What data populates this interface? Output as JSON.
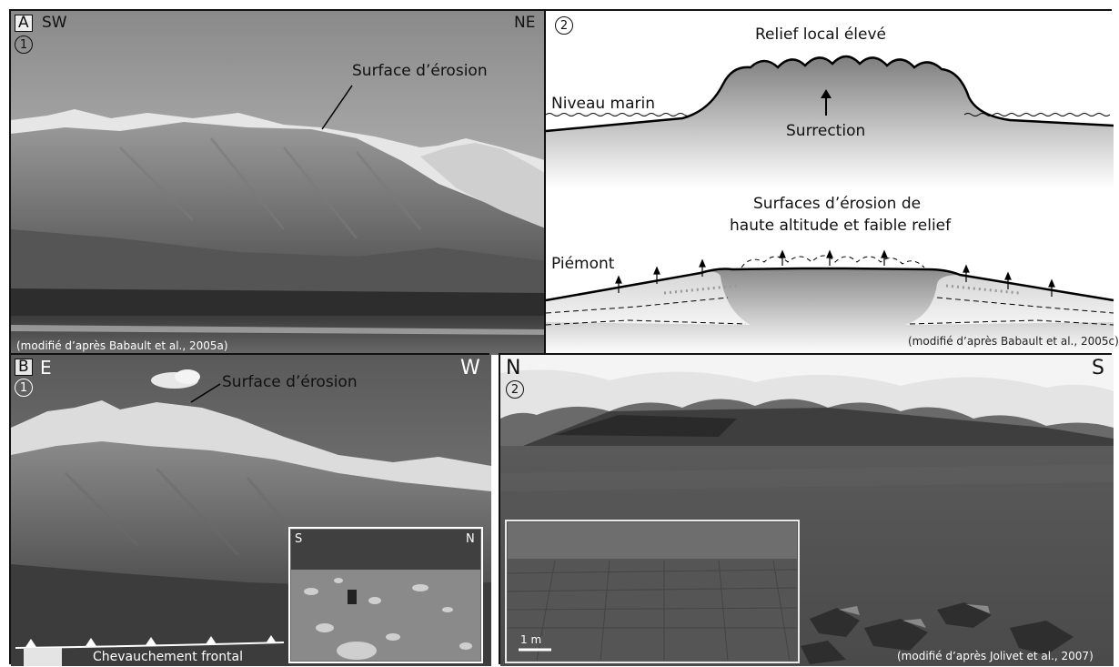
{
  "panelA": {
    "label": "A",
    "photo1": {
      "number": "1",
      "left_dir": "SW",
      "right_dir": "NE",
      "annotation": "Surface d’érosion",
      "credit": "(modifié d’après Babault et al., 2005a)"
    },
    "diagram2": {
      "number": "2",
      "top_title": "Relief local élevé",
      "sea_level": "Niveau marin",
      "uplift": "Surrection",
      "bottom_title_line1": "Surfaces d’érosion de",
      "bottom_title_line2": "haute altitude et faible relief",
      "piedmont": "Piémont",
      "credit": "(modifié d’après Babault et al., 2005c)"
    }
  },
  "panelB": {
    "label": "B",
    "photo1": {
      "number": "1",
      "left_dir": "E",
      "right_dir": "W",
      "annotation": "Surface d’érosion",
      "thrust": "Chevauchement frontal",
      "inset_left": "S",
      "inset_right": "N"
    },
    "photo2": {
      "number": "2",
      "left_dir": "N",
      "right_dir": "S",
      "scale": "1 m",
      "credit": "(modifié d’après Jolivet et al., 2007)"
    }
  }
}
